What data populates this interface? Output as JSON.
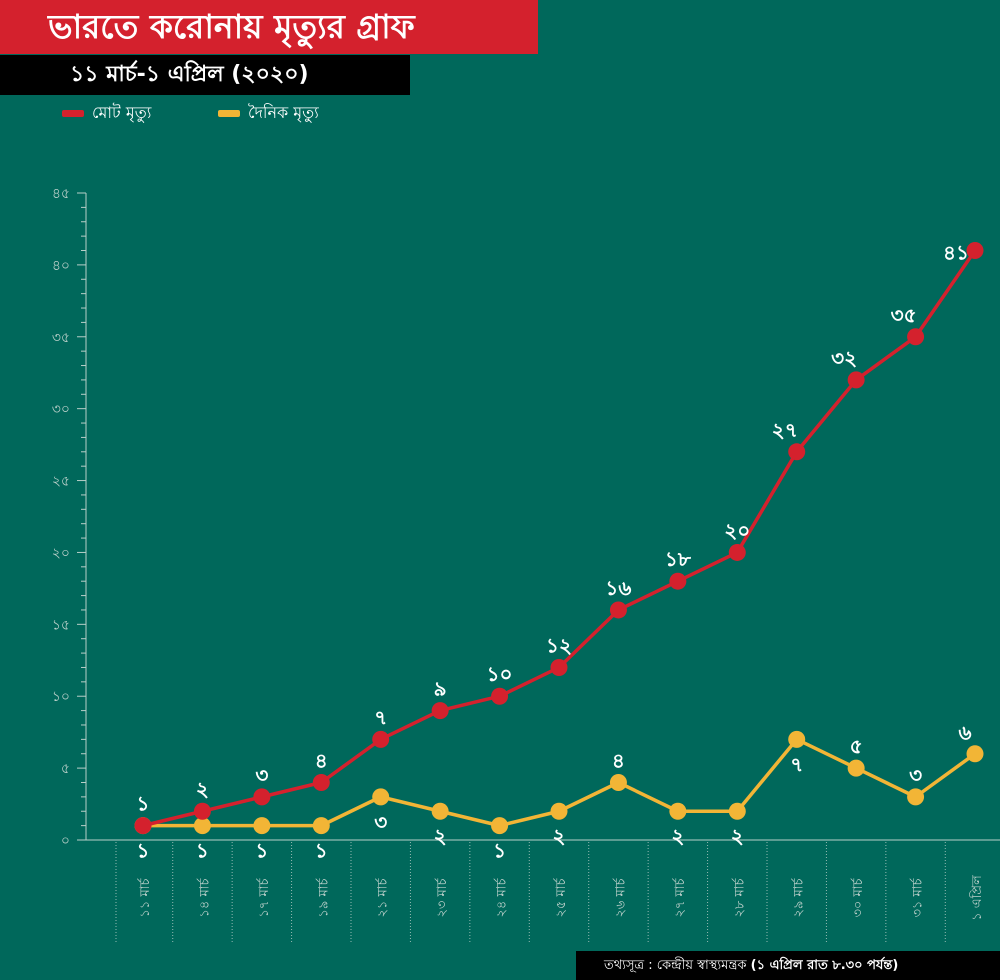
{
  "header": {
    "title": "ভারতে করোনায় মৃত্যুর গ্রাফ",
    "subtitle": "১১ মার্চ-১ এপ্রিল (২০২০)"
  },
  "legend": {
    "total_label": "মোট মৃত্যু",
    "daily_label": "দৈনিক মৃত্যু"
  },
  "source": {
    "prefix": "তথ্যসূত্র : কেন্দ্রীয় স্বাস্থ্যমন্ত্রক",
    "suffix": "(১ এপ্রিল  রাত ৮.৩০ পর্যন্ত)"
  },
  "colors": {
    "background": "#00685b",
    "total": "#d4212d",
    "daily": "#f2b536",
    "axis": "#b9cfc9"
  },
  "chart_data": {
    "type": "line",
    "title": "ভারতে করোনায় মৃত্যুর গ্রাফ",
    "subtitle": "১১ মার্চ-১ এপ্রিল (২০২০)",
    "xlabel": "",
    "ylabel": "",
    "ylim": [
      0,
      45
    ],
    "yticks": [
      0,
      5,
      10,
      15,
      20,
      25,
      30,
      35,
      40,
      45
    ],
    "ytick_labels": [
      "০",
      "৫",
      "১০",
      "১৫",
      "২০",
      "২৫",
      "৩০",
      "৩৫",
      "৪০",
      "৪৫"
    ],
    "categories": [
      "১১ মার্চ",
      "১৪ মার্চ",
      "১৭ মার্চ",
      "১৯ মার্চ",
      "২১ মার্চ",
      "২৩ মার্চ",
      "২৪ মার্চ",
      "২৫ মার্চ",
      "২৬ মার্চ",
      "২৭ মার্চ",
      "২৮ মার্চ",
      "২৯ মার্চ",
      "৩০ মার্চ",
      "৩১ মার্চ",
      "১ এপ্রিল"
    ],
    "grid": false,
    "legend_position": "top-left",
    "series": [
      {
        "name": "মোট মৃত্যু",
        "color": "#d4212d",
        "values": [
          1,
          2,
          3,
          4,
          7,
          9,
          10,
          12,
          16,
          18,
          20,
          27,
          32,
          35,
          41
        ],
        "labels": [
          "১",
          "২",
          "৩",
          "৪",
          "৭",
          "৯",
          "১০",
          "১২",
          "১৬",
          "১৮",
          "২০",
          "২৭",
          "৩২",
          "৩৫",
          "৪১"
        ]
      },
      {
        "name": "দৈনিক মৃত্যু",
        "color": "#f2b536",
        "values": [
          1,
          1,
          1,
          1,
          3,
          2,
          1,
          2,
          4,
          2,
          2,
          7,
          5,
          3,
          6
        ],
        "labels": [
          "১",
          "১",
          "১",
          "১",
          "৩",
          "২",
          "১",
          "২",
          "৪",
          "২",
          "২",
          "৭",
          "৫",
          "৩",
          "৬"
        ]
      }
    ]
  }
}
